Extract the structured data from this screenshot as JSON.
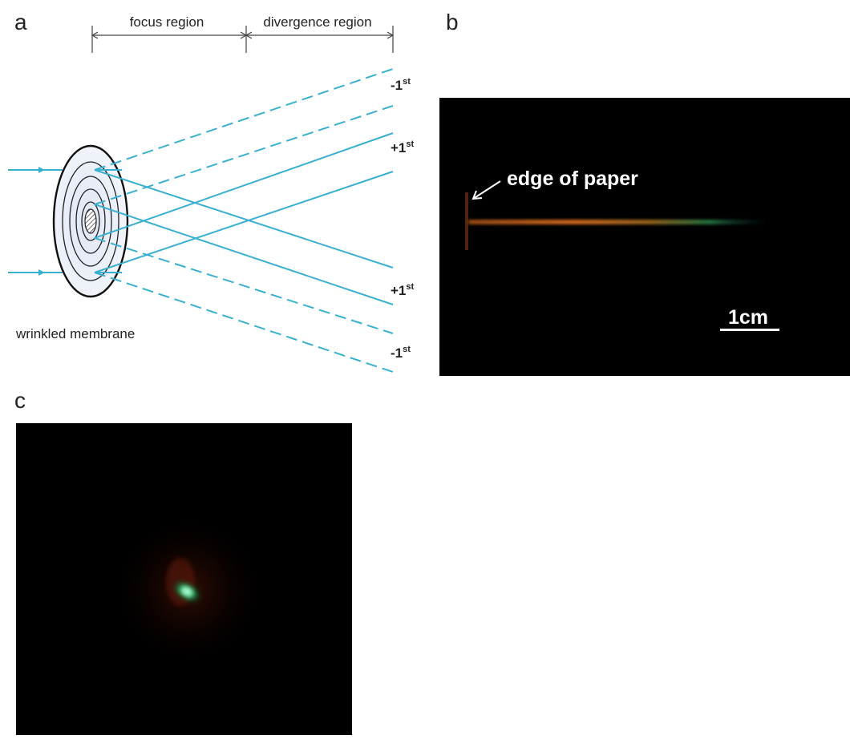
{
  "panels": {
    "a": {
      "letter": "a",
      "focus_region_label": "focus region",
      "divergence_region_label": "divergence region",
      "membrane_label": "wrinkled membrane",
      "order_labels": [
        {
          "base": "-1",
          "sup": "st"
        },
        {
          "base": "+1",
          "sup": "st"
        },
        {
          "base": "+1",
          "sup": "st"
        },
        {
          "base": "-1",
          "sup": "st"
        }
      ]
    },
    "b": {
      "letter": "b",
      "annotation": "edge of paper",
      "scale_bar_label": "1cm"
    },
    "c": {
      "letter": "c"
    }
  },
  "colors": {
    "beam": "#3ab0d0",
    "ink": "#222222",
    "photo_bg": "#000000",
    "streak_warm": "#d46a1c",
    "streak_green": "#2e9c55",
    "spot_green": "#1fd070"
  }
}
